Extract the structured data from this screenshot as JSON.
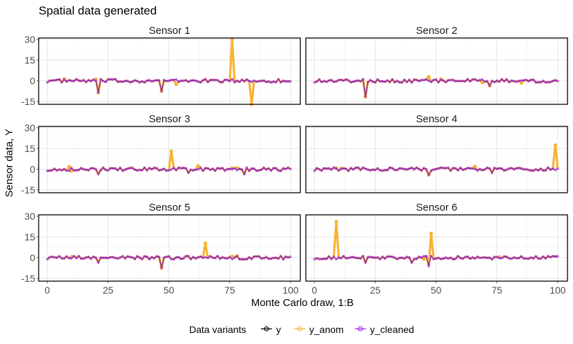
{
  "chart_data": {
    "type": "line",
    "title": "Spatial data generated",
    "xlabel": "Monte Carlo draw, 1:B",
    "ylabel": "Sensor data, Y",
    "xlim": [
      0,
      100
    ],
    "ylim": [
      -17,
      31
    ],
    "x_ticks": [
      "0",
      "25",
      "50",
      "75",
      "100"
    ],
    "x_tick_values": [
      0,
      25,
      50,
      75,
      100
    ],
    "y_ticks": [
      "-15",
      "0",
      "15",
      "30"
    ],
    "y_tick_values": [
      -15,
      0,
      15,
      30
    ],
    "grid": true,
    "legend_title": "Data variants",
    "legend_position": "bottom",
    "series_styles": [
      {
        "name": "y",
        "color": "#000000"
      },
      {
        "name": "y_anom",
        "color": "#F9B233"
      },
      {
        "name": "y_cleaned",
        "color": "#A020F0"
      }
    ],
    "panels": [
      {
        "label": "Sensor 1",
        "anomalies": [
          [
            7,
            1.5
          ],
          [
            20,
            1.2
          ],
          [
            21,
            -8.5
          ],
          [
            47,
            -7.5
          ],
          [
            53,
            -2.5
          ],
          [
            76,
            30
          ],
          [
            84,
            -17
          ]
        ],
        "dips": [
          [
            21,
            -8.5
          ],
          [
            47,
            -7.5
          ]
        ]
      },
      {
        "label": "Sensor 2",
        "anomalies": [
          [
            21,
            -11.5
          ],
          [
            47,
            3
          ],
          [
            52,
            1.2
          ],
          [
            69,
            -1.2
          ],
          [
            72,
            -3.5
          ],
          [
            85,
            -1.5
          ]
        ],
        "dips": [
          [
            21,
            -11.5
          ],
          [
            72,
            -3.5
          ]
        ]
      },
      {
        "label": "Sensor 3",
        "anomalies": [
          [
            9,
            1.8
          ],
          [
            10,
            -1.2
          ],
          [
            51,
            13
          ],
          [
            62,
            2.5
          ],
          [
            76,
            0.8
          ],
          [
            78,
            1.0
          ]
        ],
        "dips": [
          [
            21,
            -3.5
          ],
          [
            58,
            -2.5
          ],
          [
            81,
            -3.5
          ]
        ]
      },
      {
        "label": "Sensor 4",
        "anomalies": [
          [
            9,
            0.8
          ],
          [
            11,
            0.6
          ],
          [
            47,
            -4
          ],
          [
            66,
            2
          ],
          [
            99,
            17.5
          ]
        ],
        "dips": [
          [
            47,
            -4
          ],
          [
            73,
            -2.5
          ]
        ]
      },
      {
        "label": "Sensor 5",
        "anomalies": [
          [
            10,
            0.6
          ],
          [
            47,
            -7.5
          ],
          [
            65,
            10.5
          ],
          [
            76,
            1
          ],
          [
            78,
            1.2
          ]
        ],
        "dips": [
          [
            21,
            -3.5
          ],
          [
            47,
            -7.5
          ]
        ]
      },
      {
        "label": "Sensor 6",
        "anomalies": [
          [
            9,
            26
          ],
          [
            45,
            -1
          ],
          [
            48,
            17.5
          ],
          [
            76,
            0.5
          ]
        ],
        "dips": [
          [
            21,
            -3.5
          ],
          [
            40,
            -3.5
          ],
          [
            47,
            -6
          ]
        ]
      }
    ]
  }
}
